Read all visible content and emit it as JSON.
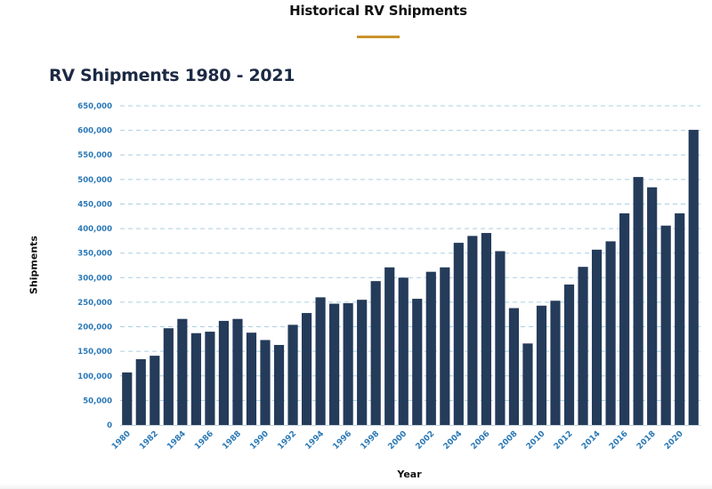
{
  "header": {
    "section_title": "Historical RV Shipments"
  },
  "colors": {
    "accent_rule": "#c9932b",
    "bar": "#243b5a",
    "tick_text": "#2a78b5",
    "grid": "#a9cfe3"
  },
  "chart_data": {
    "type": "bar",
    "title": "RV Shipments 1980 - 2021",
    "xlabel": "Year",
    "ylabel": "Shipments",
    "ylim": [
      0,
      650000
    ],
    "y_ticks": [
      "0",
      "50,000",
      "100,000",
      "150,000",
      "200,000",
      "250,000",
      "300,000",
      "350,000",
      "400,000",
      "450,000",
      "500,000",
      "550,000",
      "600,000",
      "650,000"
    ],
    "grid": true,
    "categories": [
      "1980",
      "1981",
      "1982",
      "1983",
      "1984",
      "1985",
      "1986",
      "1987",
      "1988",
      "1989",
      "1990",
      "1991",
      "1992",
      "1993",
      "1994",
      "1995",
      "1996",
      "1997",
      "1998",
      "1999",
      "2000",
      "2001",
      "2002",
      "2003",
      "2004",
      "2005",
      "2006",
      "2007",
      "2008",
      "2009",
      "2010",
      "2011",
      "2012",
      "2013",
      "2014",
      "2015",
      "2016",
      "2017",
      "2018",
      "2019",
      "2020",
      "2021"
    ],
    "x_tick_labels": [
      "1980",
      "1982",
      "1984",
      "1986",
      "1988",
      "1990",
      "1992",
      "1994",
      "1996",
      "1998",
      "2000",
      "2002",
      "2004",
      "2006",
      "2008",
      "2010",
      "2012",
      "2014",
      "2016",
      "2018",
      "2020"
    ],
    "values": [
      107000,
      134000,
      141000,
      197000,
      216000,
      187000,
      190000,
      212000,
      216000,
      188000,
      173000,
      163000,
      204000,
      228000,
      260000,
      247000,
      248000,
      255000,
      293000,
      321000,
      300000,
      257000,
      312000,
      321000,
      371000,
      385000,
      391000,
      354000,
      238000,
      166000,
      243000,
      253000,
      286000,
      322000,
      357000,
      374000,
      431000,
      505000,
      484000,
      406000,
      431000,
      601000
    ]
  }
}
